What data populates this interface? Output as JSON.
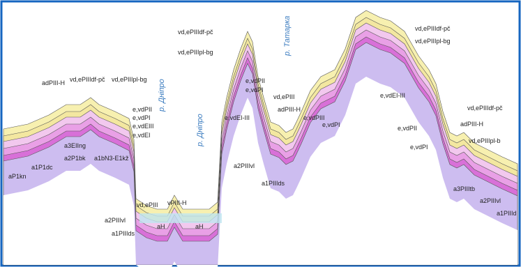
{
  "labels": [
    "adPIII-H",
    "vd,ePIIIdf-pč",
    "vd,ePIIIpl-bg",
    "e,vdPII",
    "e,vdPI",
    "e,vdEIII",
    "e,vdEI",
    "a3EIIng",
    "a1bN3-E1kž",
    "a2P1bk",
    "a1P1dc",
    "aP1kn",
    "vd,ePIII",
    "vPIII-H",
    "aH",
    "aH",
    "a2PIIIvl",
    "a1PIIIds",
    "vd,ePIIIdf-pč",
    "vd,ePIIIpl-bg",
    "e,vdPII",
    "e,vdPI",
    "e,vdEI-III",
    "vd,ePIII",
    "adPIII-H",
    "a2PIIIvl",
    "a1PIIIds",
    "e,vdPIII",
    "e,vdPI",
    "e,vdEI-III",
    "vd,ePIIIdf-pč",
    "vd,ePIIIpl-bg",
    "adPIII-H",
    "vd,ePIIIdf-pč",
    "vd,ePIIIpl-b",
    "e,vdPII",
    "e,vdPI",
    "a3PIIItb",
    "a2PIIIvl",
    "a1PIIId"
  ],
  "rivers": [
    "р. Дніпро",
    "р. Дніпро",
    "р. Татарка"
  ]
}
